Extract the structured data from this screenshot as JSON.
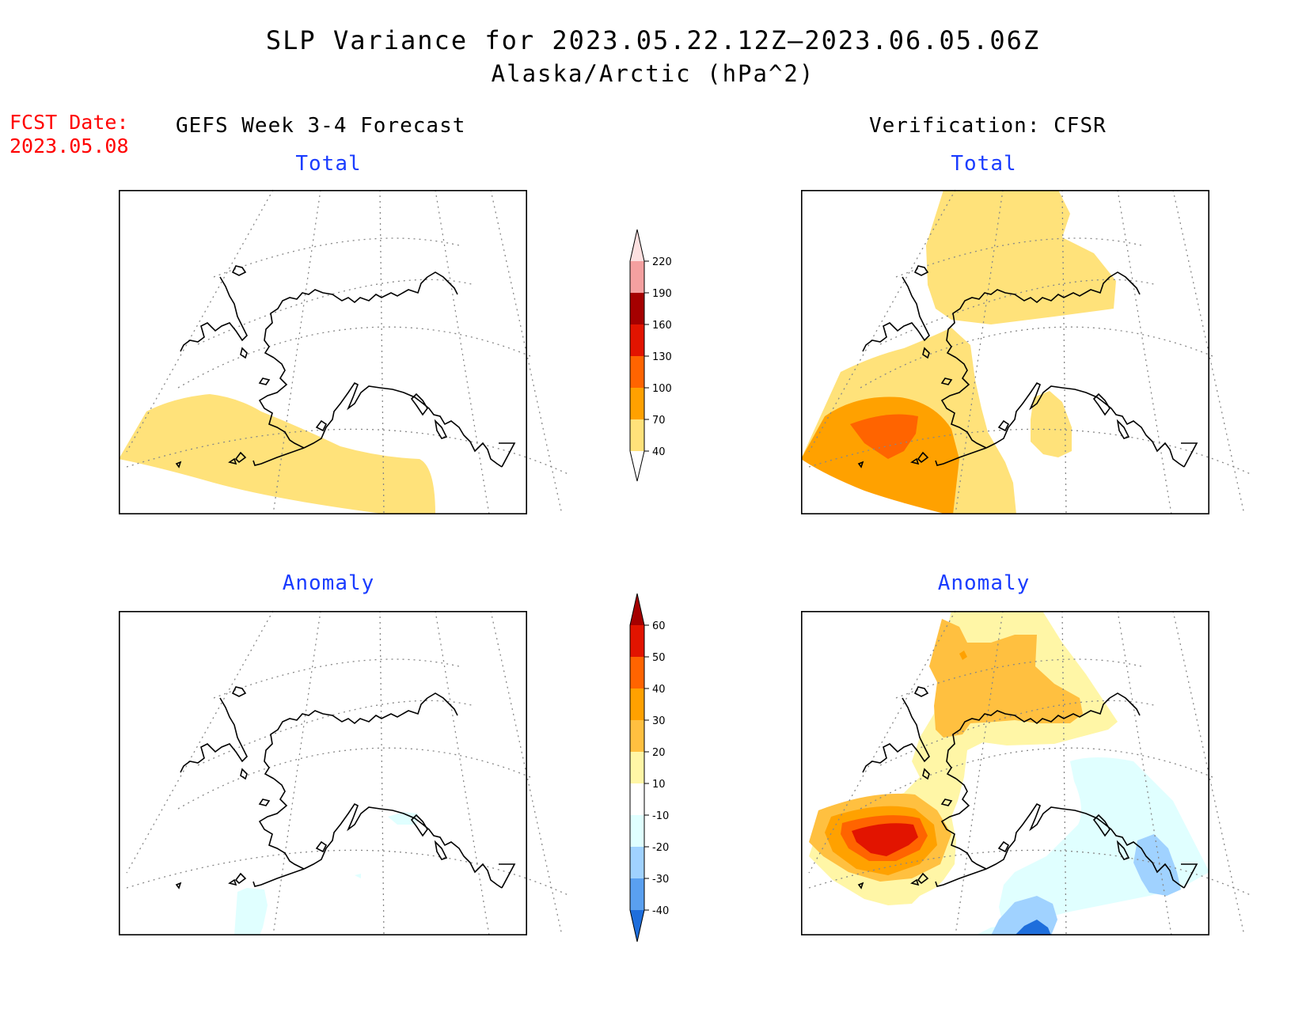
{
  "title": {
    "line1": "SLP Variance for 2023.05.22.12Z—2023.06.05.06Z",
    "line2": "Alaska/Arctic (hPa^2)"
  },
  "forecast_date": {
    "label": "FCST Date:",
    "value": "2023.05.08"
  },
  "columns": {
    "left": "GEFS Week 3-4 Forecast",
    "right": "Verification: CFSR"
  },
  "panels": {
    "total_label": "Total",
    "anomaly_label": "Anomaly"
  },
  "colorbars": {
    "total": {
      "levels": [
        "40",
        "70",
        "100",
        "130",
        "160",
        "190",
        "220"
      ],
      "colors": [
        "#ffe27a",
        "#ffa100",
        "#ff6400",
        "#e21400",
        "#a50000",
        "#f4a0a0",
        "#fde0e0"
      ]
    },
    "anomaly": {
      "levels": [
        "60",
        "50",
        "40",
        "30",
        "20",
        "10",
        "-10",
        "-20",
        "-30",
        "-40"
      ],
      "colors": [
        "#a50000",
        "#e21400",
        "#ff6400",
        "#ffa100",
        "#ffc040",
        "#fff6a6",
        "#ffffff",
        "#e0ffff",
        "#a0d2ff",
        "#5aa0f0",
        "#1e6edc"
      ]
    }
  },
  "map": {
    "region": "Alaska/Arctic",
    "projection": "polar stereographic"
  }
}
